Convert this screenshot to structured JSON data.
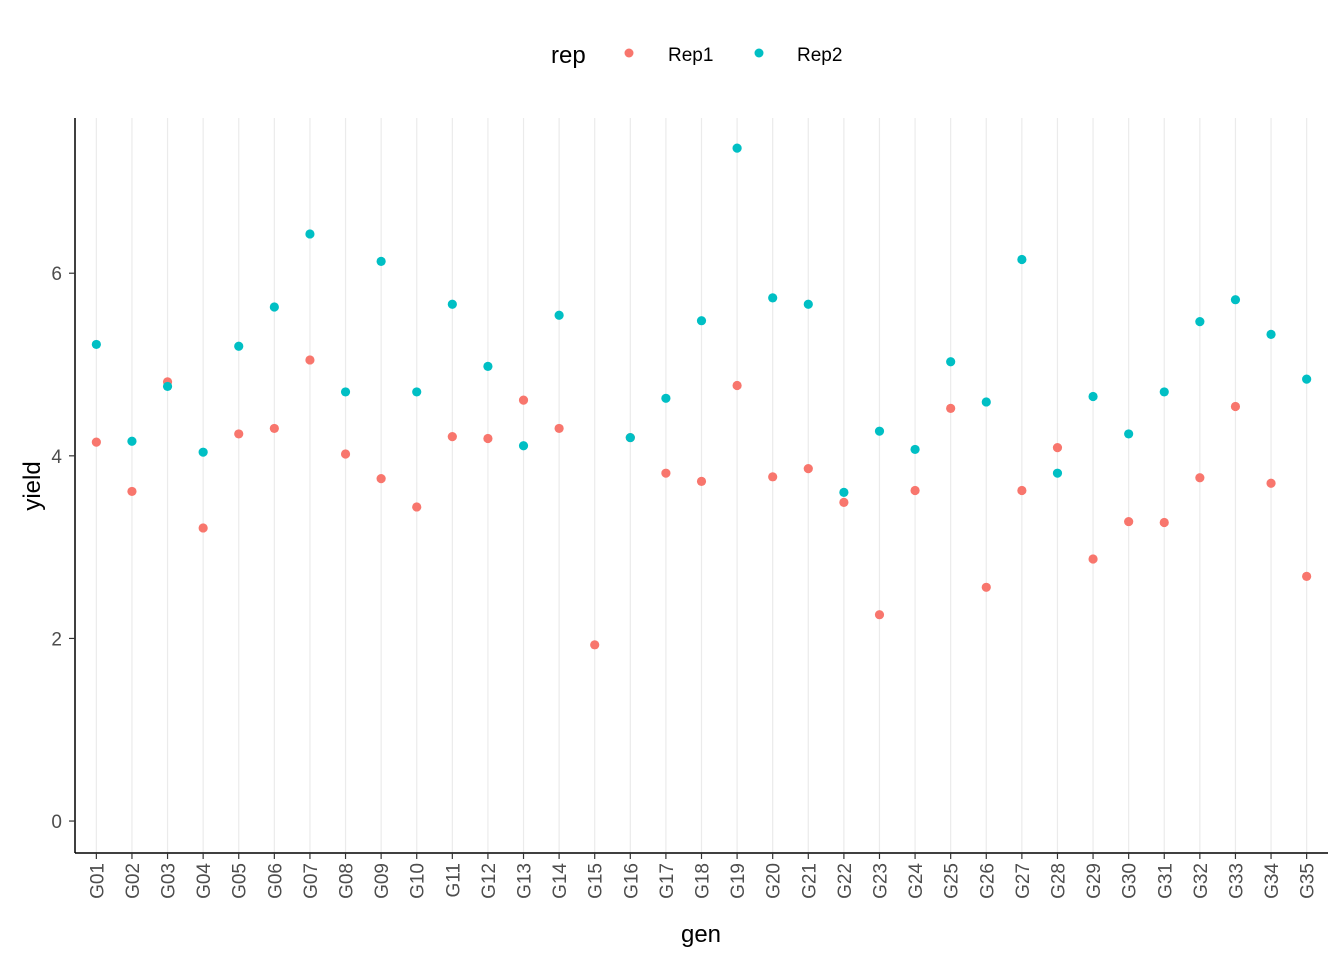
{
  "chart_data": {
    "type": "scatter",
    "xlabel": "gen",
    "ylabel": "yield",
    "categories": [
      "G01",
      "G02",
      "G03",
      "G04",
      "G05",
      "G06",
      "G07",
      "G08",
      "G09",
      "G10",
      "G11",
      "G12",
      "G13",
      "G14",
      "G15",
      "G16",
      "G17",
      "G18",
      "G19",
      "G20",
      "G21",
      "G22",
      "G23",
      "G24",
      "G25",
      "G26",
      "G27",
      "G28",
      "G29",
      "G30",
      "G31",
      "G32",
      "G33",
      "G34",
      "G35"
    ],
    "ylim": [
      -0.35,
      7.7
    ],
    "yticks": [
      0,
      2,
      4,
      6
    ],
    "grid": "vertical major",
    "legend": {
      "title": "rep",
      "position": "top"
    },
    "series": [
      {
        "name": "Rep1",
        "color": "#F8766D",
        "values": [
          4.15,
          3.61,
          4.81,
          3.21,
          4.24,
          4.3,
          5.05,
          4.02,
          3.75,
          3.44,
          4.21,
          4.19,
          4.61,
          4.3,
          1.93,
          4.2,
          3.81,
          3.72,
          4.77,
          3.77,
          3.86,
          3.49,
          2.26,
          3.62,
          4.52,
          2.56,
          3.62,
          4.09,
          2.87,
          3.28,
          3.27,
          3.76,
          4.54,
          3.7,
          2.68
        ]
      },
      {
        "name": "Rep2",
        "color": "#00BFC4",
        "values": [
          5.22,
          4.16,
          4.76,
          4.04,
          5.2,
          5.63,
          6.43,
          4.7,
          6.13,
          4.7,
          5.66,
          4.98,
          4.11,
          5.54,
          null,
          4.2,
          4.63,
          5.48,
          7.37,
          5.73,
          5.66,
          3.6,
          4.27,
          4.07,
          5.03,
          4.59,
          6.15,
          3.81,
          4.65,
          4.24,
          4.7,
          5.47,
          5.71,
          5.33,
          4.84
        ]
      }
    ]
  }
}
